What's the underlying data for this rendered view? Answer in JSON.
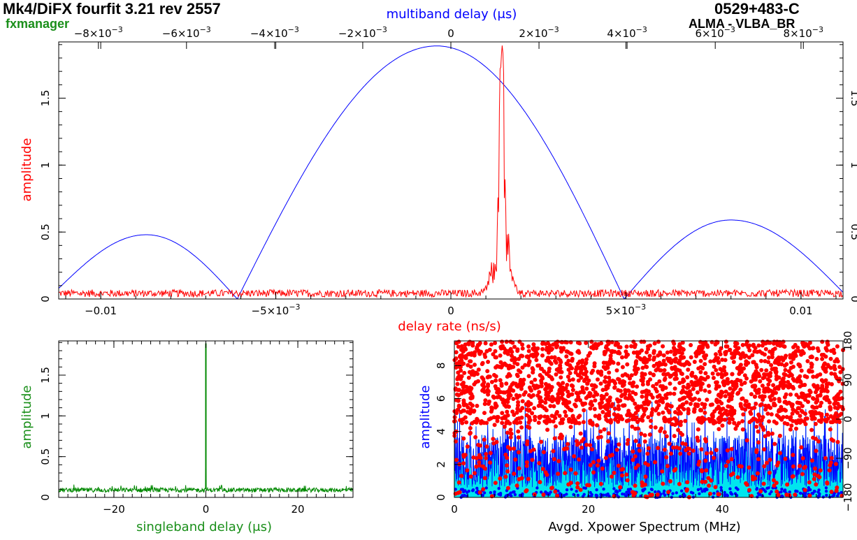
{
  "header": {
    "title_left": "Mk4/DiFX fourfit 3.21 rev 2557",
    "title_right": "0529+483-C",
    "program": "fxmanager",
    "baseline": "ALMA - VLBA_BR"
  },
  "colors": {
    "delay_rate": "#ff0000",
    "multiband": "#0000ff",
    "singleband": "#008800",
    "xpower_amp": "#0000ff",
    "xpower_fill": "#00e5ee",
    "xpower_phase": "#ff0000",
    "program": "#1a8f1a"
  },
  "chart_data": [
    {
      "id": "fringe-rate-delay",
      "type": "line",
      "xlabel": "delay rate (ns/s)",
      "x2label": "multiband delay (μs)",
      "ylabel": "amplitude",
      "xlim": [
        -0.0112,
        0.0112
      ],
      "x2lim": [
        -0.0089,
        0.0089
      ],
      "ylim": [
        0,
        1.92
      ],
      "xticks": [
        -0.01,
        -0.005,
        0,
        0.005,
        0.01
      ],
      "xtick_labels": [
        "−0.01",
        "−5×10",
        "0",
        "5×10",
        "0.01"
      ],
      "xtick_exps": [
        "",
        "−3",
        "",
        "−3",
        ""
      ],
      "x2ticks": [
        -0.008,
        -0.006,
        -0.004,
        -0.002,
        0,
        0.002,
        0.004,
        0.006,
        0.008
      ],
      "x2tick_labels": [
        "−8×10",
        "−6×10",
        "−4×10",
        "−2×10",
        "0",
        "2×10",
        "4×10",
        "6×10",
        "8×10"
      ],
      "x2tick_exps": [
        "−3",
        "−3",
        "−3",
        "−3",
        "",
        "−3",
        "−3",
        "−3",
        "−3"
      ],
      "yticks": [
        0,
        0.5,
        1,
        1.5
      ],
      "ytick_labels": [
        "0",
        "0.5",
        "1",
        "1.5"
      ],
      "multiband_envelope": {
        "peak": 1.89,
        "peak_x": -0.0004,
        "lobes": [
          {
            "from": -0.0112,
            "to": -0.0061,
            "peak": 0.48
          },
          {
            "from": -0.0061,
            "to": 0.00495,
            "peak": 1.89
          },
          {
            "from": 0.00495,
            "to": 0.0112,
            "peak": 0.59
          }
        ],
        "left_edge_value": 0.08,
        "right_edge_value": 0.05
      },
      "delay_rate_peak": {
        "x": 0.00145,
        "value": 1.88,
        "noise_level": 0.05
      }
    },
    {
      "id": "singleband-delay",
      "type": "line",
      "xlabel": "singleband delay (μs)",
      "ylabel": "amplitude",
      "xlim": [
        -32,
        32
      ],
      "ylim": [
        0,
        1.92
      ],
      "xticks": [
        -20,
        0,
        20
      ],
      "xtick_labels": [
        "−20",
        "0",
        "20"
      ],
      "yticks": [
        0,
        0.5,
        1,
        1.5
      ],
      "ytick_labels": [
        "0",
        "0.5",
        "1",
        "1.5"
      ],
      "peak": {
        "x": 0,
        "value": 1.89,
        "noise_level": 0.09
      }
    },
    {
      "id": "xpower-spectrum",
      "type": "scatter",
      "xlabel": "Avgd. Xpower Spectrum (MHz)",
      "ylabel": "amplitude",
      "xlim": [
        0,
        58
      ],
      "ylim": [
        0,
        9.5
      ],
      "y2lim": [
        -180,
        180
      ],
      "xticks": [
        0,
        20,
        40
      ],
      "xtick_labels": [
        "0",
        "20",
        "40"
      ],
      "yticks": [
        0,
        2,
        4,
        6,
        8
      ],
      "ytick_labels": [
        "0",
        "2",
        "4",
        "6",
        "8"
      ],
      "y2ticks": [
        -180,
        -90,
        0,
        90,
        180
      ],
      "y2tick_labels": [
        "−180",
        "−90",
        "0",
        "90",
        "180"
      ]
    }
  ]
}
